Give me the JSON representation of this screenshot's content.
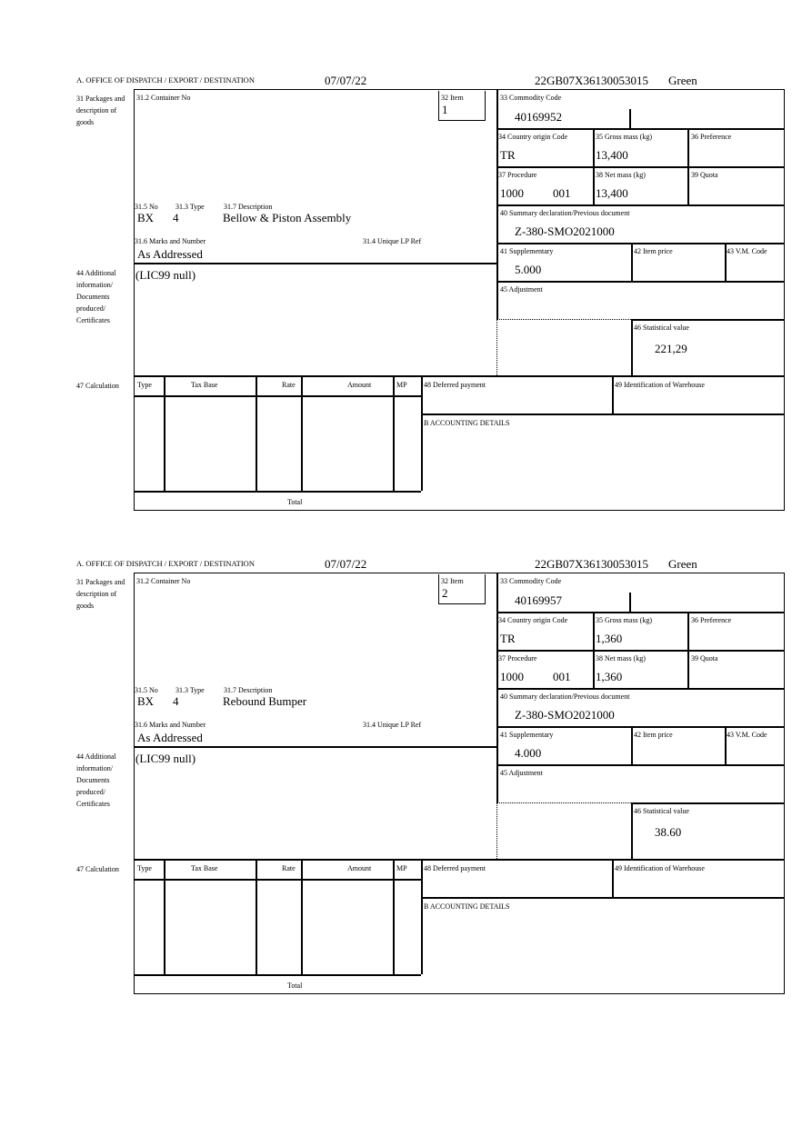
{
  "labels": {
    "office": "A.  OFFICE OF DISPATCH / EXPORT / DESTINATION",
    "box31": "31 Packages and description of goods",
    "container": "31.2 Container No",
    "item": "32 Item",
    "no": "31.5 No",
    "type": "31.3 Type",
    "description": "31.7 Description",
    "marks": "31.6 Marks and Number",
    "unique": "31.4 Unique LP Ref",
    "box44": "44 Additional information/ Documents produced/ Certificates",
    "box47": "47 Calculation",
    "commodity": "33 Commodity Code",
    "origin": "34 Country origin Code",
    "gross": "35 Gross mass (kg)",
    "preference": "36 Preference",
    "procedure": "37 Procedure",
    "net": "38 Net mass (kg)",
    "quota": "39 Quota",
    "summary": "40 Summary declaration/Previous document",
    "supplementary": "41 Supplementary",
    "price": "42 Item price",
    "vm": "43 V.M. Code",
    "adjustment": "45 Adjustment",
    "statistical": "46 Statistical value",
    "calc_cols": [
      "Type",
      "Tax Base",
      "Rate",
      "Amount",
      "MP"
    ],
    "total": "Total",
    "deferred": "48 Deferred payment",
    "warehouse": "49 Identification of Warehouse",
    "accounting": "B ACCOUNTING DETAILS"
  },
  "items": [
    {
      "date": "07/07/22",
      "reference": "22GB07X36130053015",
      "route": "Green",
      "item_no": "1",
      "package_kind": "BX",
      "package_count": "4",
      "description": "Bellow & Piston Assembly",
      "marks": "As Addressed",
      "additional_info": "(LIC99 null)",
      "commodity_code": "40169952",
      "origin": "TR",
      "gross_mass": "13,400",
      "procedure": "1000",
      "procedure_add": "001",
      "net_mass": "13,400",
      "previous_doc": "Z-380-SMO2021000",
      "supplementary": "5.000",
      "statistical_value": "221,29"
    },
    {
      "date": "07/07/22",
      "reference": "22GB07X36130053015",
      "route": "Green",
      "item_no": "2",
      "package_kind": "BX",
      "package_count": "4",
      "description": "Rebound Bumper",
      "marks": "As Addressed",
      "additional_info": "(LIC99 null)",
      "commodity_code": "40169957",
      "origin": "TR",
      "gross_mass": "1,360",
      "procedure": "1000",
      "procedure_add": "001",
      "net_mass": "1,360",
      "previous_doc": "Z-380-SMO2021000",
      "supplementary": "4.000",
      "statistical_value": "38.60"
    }
  ]
}
